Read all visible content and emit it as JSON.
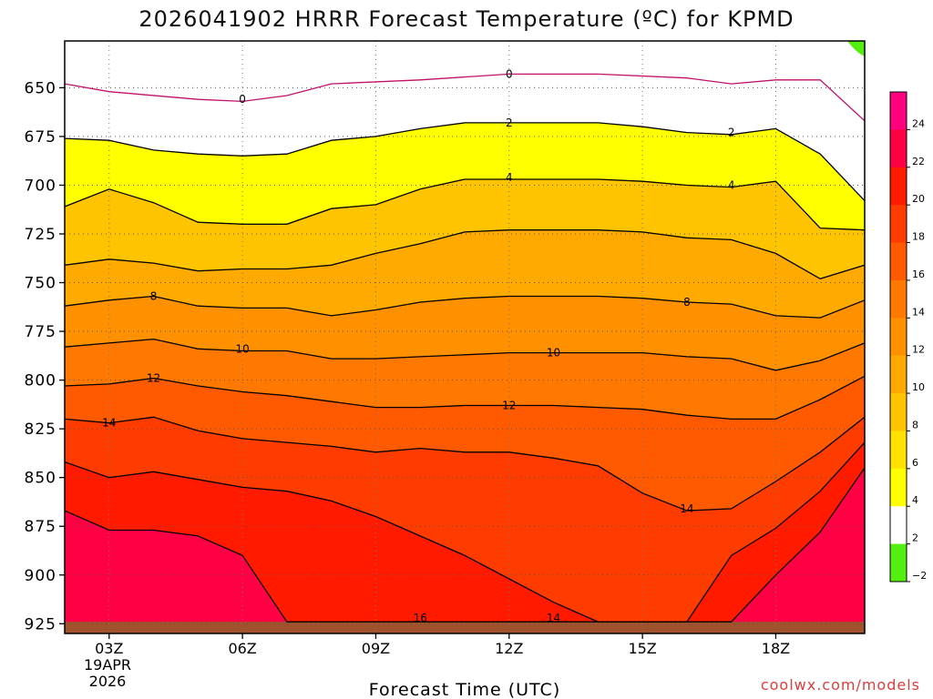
{
  "chart_data": {
    "type": "contour",
    "title": "2026041902 HRRR Forecast Temperature (ºC) for KPMD",
    "xlabel": "Forecast Time (UTC)",
    "credit": "coolwx.com/models",
    "x_ticks": [
      "03Z",
      "06Z",
      "09Z",
      "12Z",
      "15Z",
      "18Z"
    ],
    "x_sublabel": [
      "19APR",
      "2026"
    ],
    "xlim_hours": [
      2,
      20
    ],
    "y_ticks": [
      650,
      675,
      700,
      725,
      750,
      775,
      800,
      825,
      850,
      875,
      900,
      925
    ],
    "ylim_hpa": [
      626,
      930
    ],
    "ground_level_hpa": 924,
    "ground_color": "#a0522d",
    "grid": "dotted",
    "colorbar": {
      "ticks": [
        "24",
        "22",
        "20",
        "18",
        "16",
        "14",
        "12",
        "10",
        "8",
        "6",
        "4",
        "2",
        "−2"
      ],
      "colors": [
        "#ff007f",
        "#ff0044",
        "#ff1a00",
        "#ff3c00",
        "#ff5a00",
        "#ff7800",
        "#ff9000",
        "#ffaa00",
        "#ffc400",
        "#ffe000",
        "#ffff00",
        "#ffffff",
        "#55ee11"
      ]
    },
    "series": [
      {
        "level": 0,
        "fill": "#ffffff",
        "stroke": "#c0106a",
        "hours": [
          2,
          3,
          5,
          6,
          7,
          8,
          10,
          12,
          14,
          16,
          17,
          18,
          19,
          20
        ],
        "hpa": [
          648,
          652,
          656,
          657,
          654,
          648,
          646,
          643,
          643,
          645,
          648,
          646,
          646,
          667
        ]
      },
      {
        "level": 2,
        "fill": "#ffff00",
        "stroke": "#000000",
        "hours": [
          2,
          3,
          4,
          5,
          6,
          7,
          8,
          9,
          10,
          11,
          12,
          13,
          14,
          15,
          16,
          17,
          18,
          19,
          20
        ],
        "hpa": [
          676,
          677,
          682,
          684,
          685,
          684,
          677,
          675,
          671,
          668,
          668,
          668,
          668,
          670,
          673,
          674,
          671,
          684,
          708
        ]
      },
      {
        "level": 4,
        "fill": "#ffc400",
        "stroke": "#000000",
        "hours": [
          2,
          3,
          4,
          5,
          6,
          7,
          8,
          9,
          10,
          11,
          12,
          13,
          14,
          15,
          16,
          17,
          18,
          19,
          20
        ],
        "hpa": [
          711,
          702,
          709,
          719,
          720,
          720,
          712,
          710,
          702,
          697,
          697,
          697,
          697,
          698,
          700,
          701,
          698,
          722,
          723
        ]
      },
      {
        "level": 6,
        "fill": "#ffaa00",
        "stroke": "#000000",
        "hours": [
          2,
          3,
          4,
          5,
          6,
          7,
          8,
          9,
          10,
          11,
          12,
          13,
          14,
          15,
          16,
          17,
          18,
          19,
          20
        ],
        "hpa": [
          741,
          738,
          740,
          744,
          743,
          743,
          741,
          735,
          730,
          724,
          723,
          723,
          723,
          724,
          727,
          728,
          735,
          748,
          741
        ]
      },
      {
        "level": 8,
        "fill": "#ff9000",
        "stroke": "#000000",
        "hours": [
          2,
          3,
          4,
          5,
          6,
          7,
          8,
          9,
          10,
          11,
          12,
          13,
          14,
          15,
          16,
          17,
          18,
          19,
          20
        ],
        "hpa": [
          762,
          759,
          757,
          762,
          763,
          763,
          767,
          764,
          760,
          758,
          757,
          757,
          757,
          758,
          760,
          761,
          767,
          768,
          759
        ]
      },
      {
        "level": 10,
        "fill": "#ff7800",
        "stroke": "#000000",
        "hours": [
          2,
          3,
          4,
          5,
          6,
          7,
          8,
          9,
          10,
          11,
          12,
          13,
          14,
          15,
          16,
          17,
          18,
          19,
          20
        ],
        "hpa": [
          783,
          781,
          779,
          784,
          785,
          785,
          789,
          789,
          788,
          787,
          786,
          786,
          786,
          786,
          788,
          789,
          795,
          790,
          781
        ]
      },
      {
        "level": 12,
        "fill": "#ff5a00",
        "stroke": "#000000",
        "hours": [
          2,
          3,
          4,
          5,
          6,
          7,
          8,
          9,
          10,
          11,
          12,
          13,
          14,
          15,
          16,
          17,
          18,
          19,
          20
        ],
        "hpa": [
          803,
          802,
          799,
          803,
          806,
          808,
          811,
          814,
          814,
          813,
          813,
          813,
          814,
          815,
          818,
          820,
          820,
          810,
          798
        ]
      },
      {
        "level": 14,
        "fill": "#ff3c00",
        "stroke": "#000000",
        "hours": [
          2,
          3,
          4,
          5,
          6,
          7,
          8,
          9,
          10,
          11,
          12,
          13,
          14,
          15,
          16,
          17,
          18,
          19,
          20
        ],
        "hpa": [
          820,
          822,
          819,
          826,
          830,
          832,
          834,
          837,
          835,
          837,
          837,
          840,
          844,
          858,
          867,
          866,
          852,
          837,
          819
        ]
      },
      {
        "level": 16,
        "fill": "#ff1a00",
        "stroke": "#000000",
        "hours": [
          2,
          3,
          4,
          5,
          6,
          7,
          8,
          9,
          10,
          11,
          12,
          13,
          14,
          15,
          16,
          17,
          18,
          19,
          20
        ],
        "hpa": [
          842,
          850,
          847,
          851,
          855,
          857,
          862,
          870,
          880,
          890,
          902,
          914,
          924,
          924,
          924,
          890,
          876,
          857,
          832
        ]
      },
      {
        "level": 18,
        "fill": "#ff0044",
        "stroke": "#000000",
        "hours": [
          2,
          3,
          4,
          5,
          6,
          7,
          8,
          9,
          10,
          11,
          12,
          13,
          14,
          15,
          16,
          17,
          18,
          19,
          20
        ],
        "hpa": [
          867,
          877,
          877,
          880,
          890,
          924,
          924,
          924,
          924,
          924,
          924,
          924,
          924,
          924,
          924,
          924,
          900,
          878,
          845
        ]
      }
    ],
    "contour_labels": [
      {
        "text": "0",
        "hour": 6.0,
        "hpa": 656
      },
      {
        "text": "0",
        "hour": 12.0,
        "hpa": 643
      },
      {
        "text": "2",
        "hour": 12.0,
        "hpa": 668
      },
      {
        "text": "2",
        "hour": 17.0,
        "hpa": 673
      },
      {
        "text": "4",
        "hour": 12.0,
        "hpa": 696
      },
      {
        "text": "4",
        "hour": 17.0,
        "hpa": 700
      },
      {
        "text": "8",
        "hour": 4.0,
        "hpa": 757
      },
      {
        "text": "8",
        "hour": 16.0,
        "hpa": 760
      },
      {
        "text": "10",
        "hour": 6.0,
        "hpa": 784
      },
      {
        "text": "10",
        "hour": 13.0,
        "hpa": 786
      },
      {
        "text": "12",
        "hour": 4.0,
        "hpa": 799
      },
      {
        "text": "12",
        "hour": 12.0,
        "hpa": 813
      },
      {
        "text": "14",
        "hour": 3.0,
        "hpa": 822
      },
      {
        "text": "14",
        "hour": 16.0,
        "hpa": 866
      },
      {
        "text": "16",
        "hour": 10.0,
        "hpa": 922
      },
      {
        "text": "14",
        "hour": 13.0,
        "hpa": 922
      }
    ]
  }
}
